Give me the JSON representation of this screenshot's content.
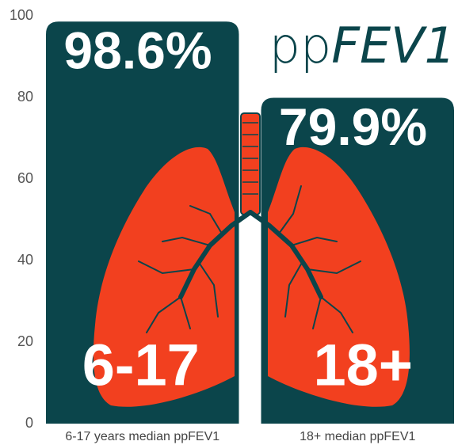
{
  "chart_data": {
    "type": "bar",
    "title": [
      "pp",
      "FEV1"
    ],
    "categories": [
      "6-17 years median ppFEV1",
      "18+ median ppFEV1"
    ],
    "values": [
      98.6,
      79.9
    ],
    "value_labels": [
      "98.6%",
      "79.9%"
    ],
    "annotations": [
      "6-17",
      "18+"
    ],
    "color": "#0b454b",
    "ylim": [
      0,
      100
    ],
    "yticks": [
      0,
      20,
      40,
      60,
      80,
      100
    ],
    "grid": false
  }
}
